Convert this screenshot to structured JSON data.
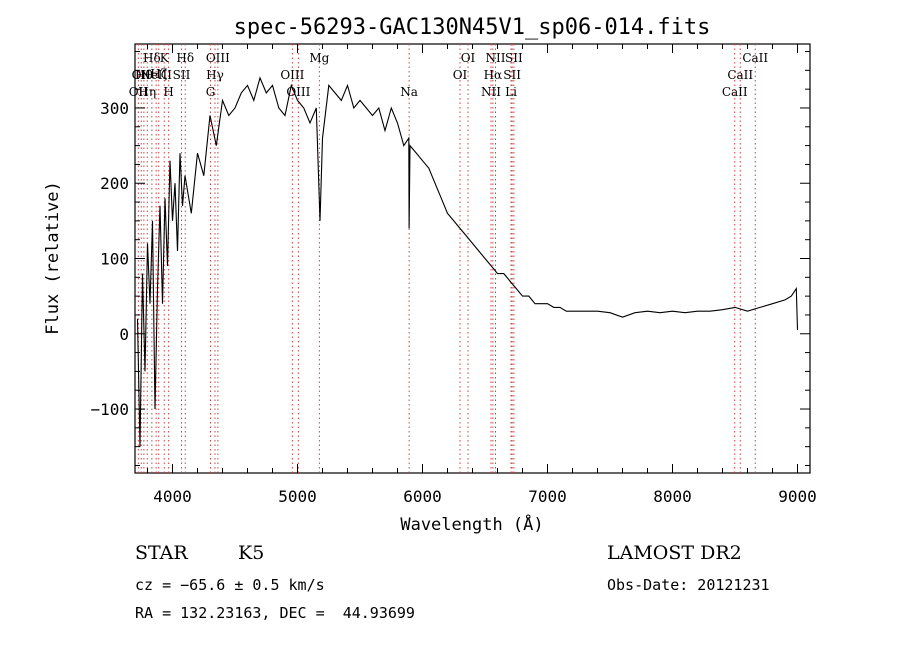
{
  "chart_data": {
    "type": "line",
    "title": "spec-56293-GAC130N45V1_sp06-014.fits",
    "xlabel": "Wavelength (Å)",
    "ylabel": "Flux (relative)",
    "xlim": [
      3700,
      9100
    ],
    "ylim": [
      -185,
      385
    ],
    "xticks": [
      4000,
      5000,
      6000,
      7000,
      8000,
      9000
    ],
    "xtick_labels": [
      "4000",
      "5000",
      "6000",
      "7000",
      "8000",
      "9000"
    ],
    "yticks": [
      -100,
      0,
      100,
      200,
      300
    ],
    "ytick_labels": [
      "−100",
      "0",
      "100",
      "200",
      "300"
    ],
    "grid": false,
    "legend": "none",
    "series": [
      {
        "x": [
          3720,
          3740,
          3760,
          3780,
          3800,
          3820,
          3840,
          3860,
          3880,
          3900,
          3920,
          3940,
          3960,
          3980,
          4000,
          4020,
          4040,
          4060,
          4080,
          4100,
          4150,
          4200,
          4250,
          4300,
          4350,
          4400,
          4450,
          4500,
          4550,
          4600,
          4650,
          4700,
          4750,
          4800,
          4850,
          4900,
          4950,
          5000,
          5050,
          5100,
          5150,
          5180,
          5200,
          5250,
          5300,
          5350,
          5400,
          5450,
          5500,
          5550,
          5600,
          5650,
          5700,
          5750,
          5800,
          5850,
          5890,
          5893,
          5900,
          5950,
          6000,
          6050,
          6100,
          6150,
          6200,
          6250,
          6300,
          6350,
          6400,
          6450,
          6500,
          6550,
          6600,
          6650,
          6700,
          6750,
          6800,
          6850,
          6900,
          6950,
          7000,
          7050,
          7100,
          7150,
          7200,
          7300,
          7400,
          7500,
          7600,
          7700,
          7800,
          7900,
          8000,
          8100,
          8200,
          8300,
          8400,
          8500,
          8600,
          8700,
          8800,
          8900,
          8950,
          8990,
          9000
        ],
        "y": [
          20,
          -150,
          80,
          -50,
          120,
          40,
          150,
          -100,
          60,
          170,
          40,
          180,
          90,
          230,
          150,
          200,
          110,
          240,
          170,
          210,
          160,
          240,
          210,
          290,
          250,
          310,
          290,
          300,
          320,
          330,
          310,
          340,
          320,
          330,
          300,
          290,
          330,
          310,
          300,
          280,
          300,
          150,
          260,
          330,
          320,
          310,
          330,
          300,
          310,
          300,
          290,
          300,
          270,
          300,
          280,
          250,
          260,
          140,
          250,
          240,
          230,
          220,
          200,
          180,
          160,
          150,
          140,
          130,
          120,
          110,
          100,
          90,
          80,
          80,
          70,
          60,
          50,
          50,
          40,
          40,
          40,
          35,
          35,
          30,
          30,
          30,
          30,
          28,
          22,
          28,
          30,
          28,
          30,
          28,
          30,
          30,
          32,
          35,
          30,
          35,
          40,
          45,
          50,
          60,
          5
        ]
      }
    ],
    "line_markers": [
      {
        "wl": 3727,
        "label": "OII",
        "row": 4
      },
      {
        "wl": 3750,
        "label": "OII",
        "row": 3
      },
      {
        "wl": 3771,
        "label": "Hθ",
        "row": 3
      },
      {
        "wl": 3798,
        "label": "Hη",
        "row": 4
      },
      {
        "wl": 3835,
        "label": "Hδ",
        "row": 1
      },
      {
        "wl": 3869,
        "label": "NeIII",
        "row": 3
      },
      {
        "wl": 3890,
        "label": "Hζ",
        "row": 2
      },
      {
        "wl": 3934,
        "label": "K",
        "row": 1
      },
      {
        "wl": 3969,
        "label": "H",
        "row": 4
      },
      {
        "wl": 4072,
        "label": "SII",
        "row": 3
      },
      {
        "wl": 4102,
        "label": "Hδ",
        "row": 1
      },
      {
        "wl": 4304,
        "label": "G",
        "row": 4
      },
      {
        "wl": 4340,
        "label": "Hγ",
        "row": 3
      },
      {
        "wl": 4363,
        "label": "OIII",
        "row": 1
      },
      {
        "wl": 4959,
        "label": "OIII",
        "row": 3
      },
      {
        "wl": 5007,
        "label": "OIII",
        "row": 4
      },
      {
        "wl": 5175,
        "label": "Mg",
        "row": 1
      },
      {
        "wl": 5893,
        "label": "Na",
        "row": 4
      },
      {
        "wl": 6300,
        "label": "OI",
        "row": 3
      },
      {
        "wl": 6364,
        "label": "OI",
        "row": 1
      },
      {
        "wl": 6548,
        "label": "NII",
        "row": 4
      },
      {
        "wl": 6563,
        "label": "Hα",
        "row": 3
      },
      {
        "wl": 6584,
        "label": "NII",
        "row": 1
      },
      {
        "wl": 6708,
        "label": "Li",
        "row": 4
      },
      {
        "wl": 6717,
        "label": "SII",
        "row": 3
      },
      {
        "wl": 6731,
        "label": "SII",
        "row": 1
      },
      {
        "wl": 8498,
        "label": "CaII",
        "row": 4
      },
      {
        "wl": 8542,
        "label": "CaII",
        "row": 3
      },
      {
        "wl": 8662,
        "label": "CaII",
        "row": 1
      }
    ]
  },
  "info": {
    "class": "STAR",
    "subclass": "K5",
    "release": "LAMOST DR2",
    "redshift": "cz = −65.6 ± 0.5 km/s",
    "obs_date": "Obs-Date: 20121231",
    "coords": "RA = 132.23163, DEC =  44.93699"
  }
}
